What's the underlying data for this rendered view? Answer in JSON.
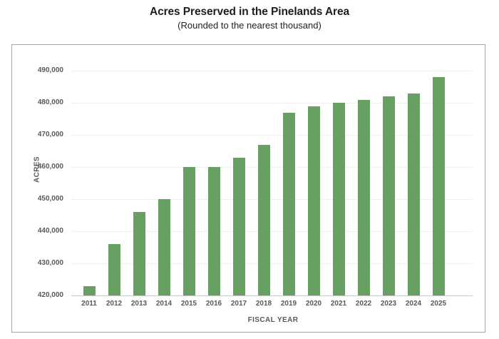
{
  "chart_data": {
    "type": "bar",
    "title": "Acres Preserved in the Pinelands Area",
    "subtitle": "(Rounded to the nearest thousand)",
    "xlabel": "FISCAL YEAR",
    "ylabel": "ACRES",
    "categories": [
      "2011",
      "2012",
      "2013",
      "2014",
      "2015",
      "2016",
      "2017",
      "2018",
      "2019",
      "2020",
      "2021",
      "2022",
      "2023",
      "2024",
      "2025"
    ],
    "values": [
      423000,
      436000,
      446000,
      450000,
      460000,
      460000,
      463000,
      467000,
      477000,
      479000,
      480000,
      481000,
      482000,
      483000,
      488000
    ],
    "ylim": [
      420000,
      490000
    ],
    "ytick_step": 10000,
    "ytick_labels": [
      "420,000",
      "430,000",
      "440,000",
      "450,000",
      "460,000",
      "470,000",
      "480,000",
      "490,000"
    ],
    "bar_color": "#68A064",
    "grid": "horizontal",
    "legend": "none",
    "colors": {
      "bar": "#68A064",
      "gridline": "#f0f0f0",
      "baseline": "#c9c9c9",
      "tick_text": "#595959",
      "title_text": "#1d1d1d",
      "box_border": "#a6a6a6"
    }
  }
}
